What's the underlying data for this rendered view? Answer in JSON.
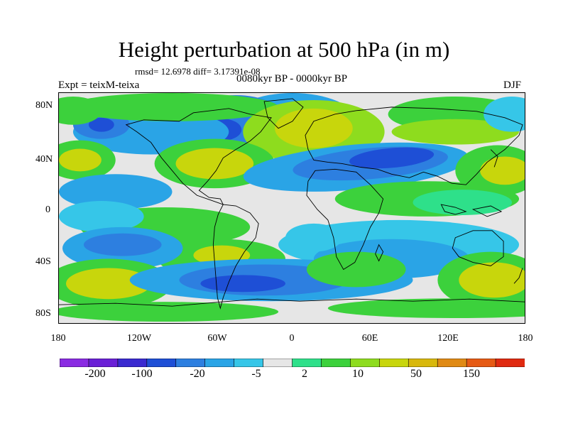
{
  "title": "Height perturbation at 500 hPa (in m)",
  "stats": "rmsd= 12.6978 diff= 3.17391e-08",
  "experiment": "Expt = teixM-teixa",
  "period": "0080kyr BP - 0000kyr BP",
  "season": "DJF",
  "axes": {
    "y_labels": [
      "80N",
      "40N",
      "0",
      "40S",
      "80S"
    ],
    "x_labels": [
      "180",
      "120W",
      "60W",
      "0",
      "60E",
      "120E",
      "180"
    ]
  },
  "colorbar": {
    "labels": [
      "-200",
      "-100",
      "-20",
      "-5",
      "2",
      "10",
      "50",
      "150"
    ],
    "colors": [
      "#8a2be2",
      "#6a1fd6",
      "#3a2ad0",
      "#1e4fd6",
      "#2d7fe0",
      "#2aa4e6",
      "#36c6e8",
      "#e6e6e6",
      "#2ee08a",
      "#3cd13c",
      "#8edc1e",
      "#c8d60c",
      "#d8b80c",
      "#e08a14",
      "#e65a14",
      "#e02a10"
    ]
  },
  "palette": {
    "neutral": "#e6e6e6",
    "cyan": "#36c6e8",
    "lightblue": "#2aa4e6",
    "blue": "#2d7fe0",
    "deepblue": "#1e4fd6",
    "indigo": "#3a2ad0",
    "teal": "#2ee08a",
    "green": "#3cd13c",
    "lime": "#8edc1e",
    "yellow": "#c8d60c",
    "orange": "#d8b80c"
  }
}
